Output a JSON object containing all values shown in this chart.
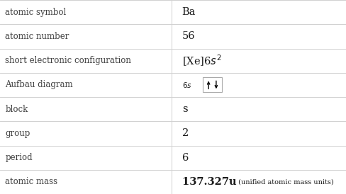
{
  "rows": [
    {
      "label": "atomic symbol",
      "value": "Ba",
      "type": "text"
    },
    {
      "label": "atomic number",
      "value": "56",
      "type": "text"
    },
    {
      "label": "short electronic configuration",
      "value": "",
      "type": "config"
    },
    {
      "label": "Aufbau diagram",
      "value": "",
      "type": "aufbau"
    },
    {
      "label": "block",
      "value": "s",
      "type": "text"
    },
    {
      "label": "group",
      "value": "2",
      "type": "text"
    },
    {
      "label": "period",
      "value": "6",
      "type": "text"
    },
    {
      "label": "atomic mass",
      "value": "137.327",
      "type": "mass"
    }
  ],
  "col_split": 0.495,
  "bg_color": "#ffffff",
  "grid_color": "#d0d0d0",
  "label_color": "#404040",
  "value_color": "#1a1a1a",
  "font_size_label": 8.5,
  "font_size_value": 10.5,
  "font_size_mass_small": 7.0,
  "font_size_aufbau_label": 7.5
}
